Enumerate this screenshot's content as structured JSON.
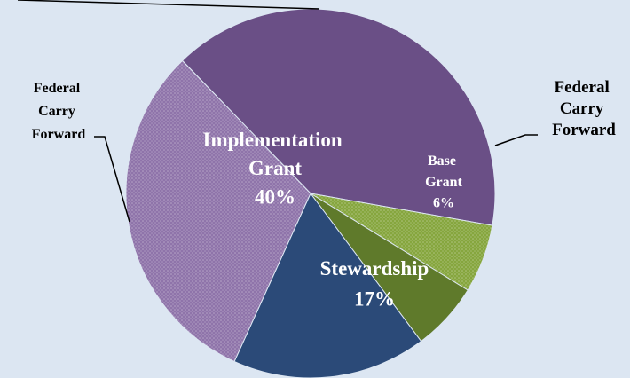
{
  "chart_data": {
    "type": "pie",
    "categories": [
      "Implementation Grant",
      "Federal Carry Forward",
      "Base Grant",
      "Stewardship",
      "Federal Carry Forward"
    ],
    "values": [
      40,
      6,
      6,
      17,
      31
    ],
    "value_labels": [
      "40%",
      null,
      "6%",
      "17%",
      null
    ],
    "colors": [
      "#6a4f86",
      "#86a63e",
      "#5f7a2b",
      "#2b4a78",
      "#8f74aa"
    ],
    "patterned": [
      false,
      true,
      false,
      false,
      true
    ]
  }
}
